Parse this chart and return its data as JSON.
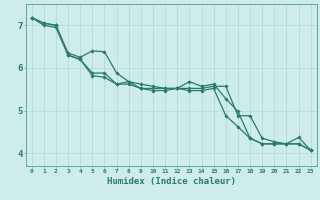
{
  "xlabel": "Humidex (Indice chaleur)",
  "bg_color": "#ceecea",
  "grid_color": "#b8dbd8",
  "line_color": "#2a7a6e",
  "xlim": [
    -0.5,
    23.5
  ],
  "ylim": [
    3.7,
    7.5
  ],
  "xticks": [
    0,
    1,
    2,
    3,
    4,
    5,
    6,
    7,
    8,
    9,
    10,
    11,
    12,
    13,
    14,
    15,
    16,
    17,
    18,
    19,
    20,
    21,
    22,
    23
  ],
  "yticks": [
    4,
    5,
    6,
    7
  ],
  "series1": [
    7.18,
    7.05,
    7.0,
    6.35,
    6.25,
    6.4,
    6.38,
    5.88,
    5.68,
    5.62,
    5.57,
    5.52,
    5.52,
    5.68,
    5.57,
    5.62,
    5.28,
    4.98,
    4.35,
    4.22,
    4.22,
    4.22,
    4.37,
    4.07
  ],
  "series2": [
    7.18,
    7.05,
    7.0,
    6.3,
    6.2,
    5.88,
    5.88,
    5.62,
    5.68,
    5.52,
    5.52,
    5.52,
    5.52,
    5.52,
    5.52,
    5.57,
    5.57,
    4.88,
    4.88,
    4.35,
    4.27,
    4.22,
    4.22,
    4.07
  ],
  "series3": [
    7.18,
    7.0,
    6.95,
    6.3,
    6.2,
    5.82,
    5.78,
    5.62,
    5.62,
    5.52,
    5.47,
    5.47,
    5.52,
    5.47,
    5.47,
    5.52,
    4.88,
    4.62,
    4.35,
    4.22,
    4.22,
    4.22,
    4.22,
    4.07
  ]
}
